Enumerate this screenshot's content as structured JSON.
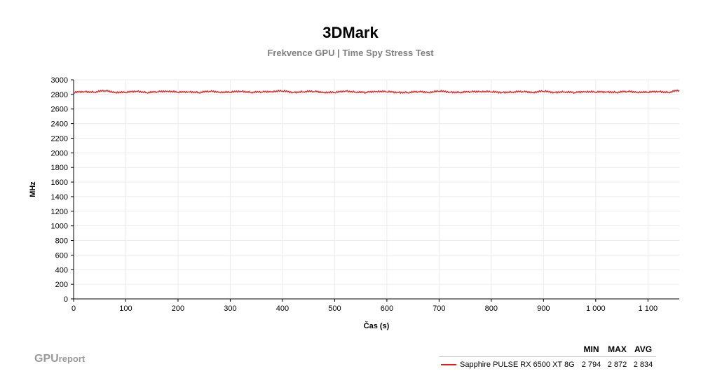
{
  "chart_data": {
    "type": "line",
    "title": "3DMark",
    "subtitle": "Frekvence GPU | Time Spy Stress Test",
    "xlabel": "Čas (s)",
    "ylabel": "MHz",
    "xlim": [
      0,
      1160
    ],
    "ylim": [
      0,
      3000
    ],
    "x_ticks": [
      0,
      100,
      200,
      300,
      400,
      500,
      600,
      700,
      800,
      900,
      1000,
      1100
    ],
    "x_tick_labels": [
      "0",
      "100",
      "200",
      "300",
      "400",
      "500",
      "600",
      "700",
      "800",
      "900",
      "1 000",
      "1 100"
    ],
    "y_ticks": [
      0,
      200,
      400,
      600,
      800,
      1000,
      1200,
      1400,
      1600,
      1800,
      2000,
      2200,
      2400,
      2600,
      2800,
      3000
    ],
    "grid": true,
    "legend_position": "bottom-right",
    "series": [
      {
        "name": "Sapphire PULSE RX 6500 XT 8G",
        "color": "#e31a1c",
        "x": [
          0,
          20,
          40,
          60,
          80,
          100,
          120,
          140,
          160,
          180,
          200,
          220,
          240,
          260,
          280,
          300,
          320,
          340,
          360,
          380,
          400,
          420,
          440,
          460,
          480,
          500,
          520,
          540,
          560,
          580,
          600,
          620,
          640,
          660,
          680,
          700,
          720,
          740,
          760,
          780,
          800,
          820,
          840,
          860,
          880,
          900,
          920,
          940,
          960,
          980,
          1000,
          1020,
          1040,
          1060,
          1080,
          1100,
          1120,
          1140,
          1160
        ],
        "y": [
          2826,
          2840,
          2832,
          2852,
          2830,
          2828,
          2846,
          2826,
          2836,
          2848,
          2829,
          2838,
          2826,
          2845,
          2833,
          2830,
          2846,
          2828,
          2836,
          2841,
          2848,
          2828,
          2838,
          2842,
          2830,
          2826,
          2848,
          2833,
          2828,
          2845,
          2836,
          2830,
          2826,
          2840,
          2829,
          2846,
          2833,
          2828,
          2838,
          2842,
          2836,
          2828,
          2833,
          2840,
          2830,
          2844,
          2828,
          2836,
          2826,
          2842,
          2831,
          2837,
          2828,
          2842,
          2833,
          2830,
          2842,
          2828,
          2858
        ]
      }
    ],
    "stats_headers": [
      "MIN",
      "MAX",
      "AVG"
    ],
    "stats": [
      {
        "min": "2 794",
        "max": "2 872",
        "avg": "2 834"
      }
    ]
  },
  "branding": {
    "logo_main": "GPU",
    "logo_small": "report"
  }
}
